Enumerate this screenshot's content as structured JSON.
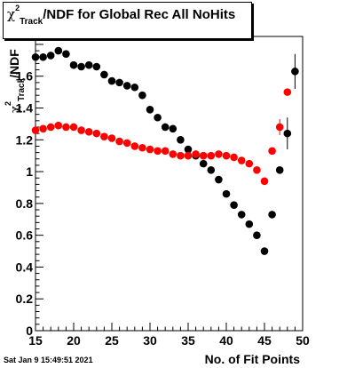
{
  "title": {
    "symbol": "χ",
    "sup": "2",
    "sub": "Track",
    "text": "/NDF for Global Rec All NoHits"
  },
  "footer": {
    "timestamp": "Sat Jan  9 15:49:51 2021"
  },
  "chart_data": {
    "type": "scatter",
    "xlabel": "No. of Fit Points",
    "ylabel": {
      "symbol": "χ",
      "sup": "2",
      "sub": "Track",
      "text": "/NDF"
    },
    "xlim": [
      15,
      50
    ],
    "ylim": [
      0,
      1.85
    ],
    "xticks": [
      15,
      20,
      25,
      30,
      35,
      40,
      45,
      50
    ],
    "yticks": [
      0,
      0.2,
      0.4,
      0.6,
      0.8,
      1,
      1.2,
      1.4,
      1.6
    ],
    "grid": false,
    "series": [
      {
        "color": "#000000",
        "points": [
          {
            "x": 15,
            "y": 1.72,
            "err": 0.01
          },
          {
            "x": 16,
            "y": 1.72,
            "err": 0.01
          },
          {
            "x": 17,
            "y": 1.73,
            "err": 0.01
          },
          {
            "x": 18,
            "y": 1.76,
            "err": 0.01
          },
          {
            "x": 19,
            "y": 1.74,
            "err": 0.01
          },
          {
            "x": 20,
            "y": 1.67,
            "err": 0.01
          },
          {
            "x": 21,
            "y": 1.66,
            "err": 0.01
          },
          {
            "x": 22,
            "y": 1.67,
            "err": 0.01
          },
          {
            "x": 23,
            "y": 1.66,
            "err": 0.01
          },
          {
            "x": 24,
            "y": 1.61,
            "err": 0.01
          },
          {
            "x": 25,
            "y": 1.57,
            "err": 0.01
          },
          {
            "x": 26,
            "y": 1.56,
            "err": 0.01
          },
          {
            "x": 27,
            "y": 1.54,
            "err": 0.01
          },
          {
            "x": 28,
            "y": 1.53,
            "err": 0.01
          },
          {
            "x": 29,
            "y": 1.48,
            "err": 0.01
          },
          {
            "x": 30,
            "y": 1.39,
            "err": 0.01
          },
          {
            "x": 31,
            "y": 1.34,
            "err": 0.01
          },
          {
            "x": 32,
            "y": 1.28,
            "err": 0.01
          },
          {
            "x": 33,
            "y": 1.27,
            "err": 0.01
          },
          {
            "x": 34,
            "y": 1.2,
            "err": 0.01
          },
          {
            "x": 35,
            "y": 1.14,
            "err": 0.01
          },
          {
            "x": 36,
            "y": 1.1,
            "err": 0.01
          },
          {
            "x": 37,
            "y": 1.05,
            "err": 0.01
          },
          {
            "x": 38,
            "y": 1.01,
            "err": 0.01
          },
          {
            "x": 39,
            "y": 0.95,
            "err": 0.01
          },
          {
            "x": 40,
            "y": 0.86,
            "err": 0.01
          },
          {
            "x": 41,
            "y": 0.79,
            "err": 0.01
          },
          {
            "x": 42,
            "y": 0.73,
            "err": 0.01
          },
          {
            "x": 43,
            "y": 0.67,
            "err": 0.01
          },
          {
            "x": 44,
            "y": 0.6,
            "err": 0.01
          },
          {
            "x": 45,
            "y": 0.5,
            "err": 0.01
          },
          {
            "x": 46,
            "y": 0.73,
            "err": 0.01
          },
          {
            "x": 47,
            "y": 1.01,
            "err": 0.02
          },
          {
            "x": 48,
            "y": 1.24,
            "err": 0.1
          },
          {
            "x": 49,
            "y": 1.63,
            "err": 0.11
          }
        ]
      },
      {
        "color": "#ff0000",
        "points": [
          {
            "x": 15,
            "y": 1.26,
            "err": 0.01
          },
          {
            "x": 16,
            "y": 1.27,
            "err": 0.01
          },
          {
            "x": 17,
            "y": 1.28,
            "err": 0.01
          },
          {
            "x": 18,
            "y": 1.29,
            "err": 0.01
          },
          {
            "x": 19,
            "y": 1.28,
            "err": 0.01
          },
          {
            "x": 20,
            "y": 1.28,
            "err": 0.01
          },
          {
            "x": 21,
            "y": 1.26,
            "err": 0.01
          },
          {
            "x": 22,
            "y": 1.25,
            "err": 0.01
          },
          {
            "x": 23,
            "y": 1.24,
            "err": 0.01
          },
          {
            "x": 24,
            "y": 1.22,
            "err": 0.01
          },
          {
            "x": 25,
            "y": 1.21,
            "err": 0.01
          },
          {
            "x": 26,
            "y": 1.19,
            "err": 0.01
          },
          {
            "x": 27,
            "y": 1.18,
            "err": 0.01
          },
          {
            "x": 28,
            "y": 1.16,
            "err": 0.01
          },
          {
            "x": 29,
            "y": 1.15,
            "err": 0.01
          },
          {
            "x": 30,
            "y": 1.14,
            "err": 0.01
          },
          {
            "x": 31,
            "y": 1.13,
            "err": 0.01
          },
          {
            "x": 32,
            "y": 1.13,
            "err": 0.01
          },
          {
            "x": 33,
            "y": 1.11,
            "err": 0.01
          },
          {
            "x": 34,
            "y": 1.1,
            "err": 0.01
          },
          {
            "x": 35,
            "y": 1.1,
            "err": 0.01
          },
          {
            "x": 36,
            "y": 1.11,
            "err": 0.01
          },
          {
            "x": 37,
            "y": 1.1,
            "err": 0.01
          },
          {
            "x": 38,
            "y": 1.1,
            "err": 0.01
          },
          {
            "x": 39,
            "y": 1.11,
            "err": 0.01
          },
          {
            "x": 40,
            "y": 1.1,
            "err": 0.01
          },
          {
            "x": 41,
            "y": 1.09,
            "err": 0.01
          },
          {
            "x": 42,
            "y": 1.07,
            "err": 0.01
          },
          {
            "x": 43,
            "y": 1.05,
            "err": 0.01
          },
          {
            "x": 44,
            "y": 1.01,
            "err": 0.01
          },
          {
            "x": 45,
            "y": 0.94,
            "err": 0.01
          },
          {
            "x": 46,
            "y": 1.13,
            "err": 0.01
          },
          {
            "x": 47,
            "y": 1.28,
            "err": 0.05
          },
          {
            "x": 48,
            "y": 1.5,
            "err": 0.02
          }
        ]
      }
    ]
  }
}
